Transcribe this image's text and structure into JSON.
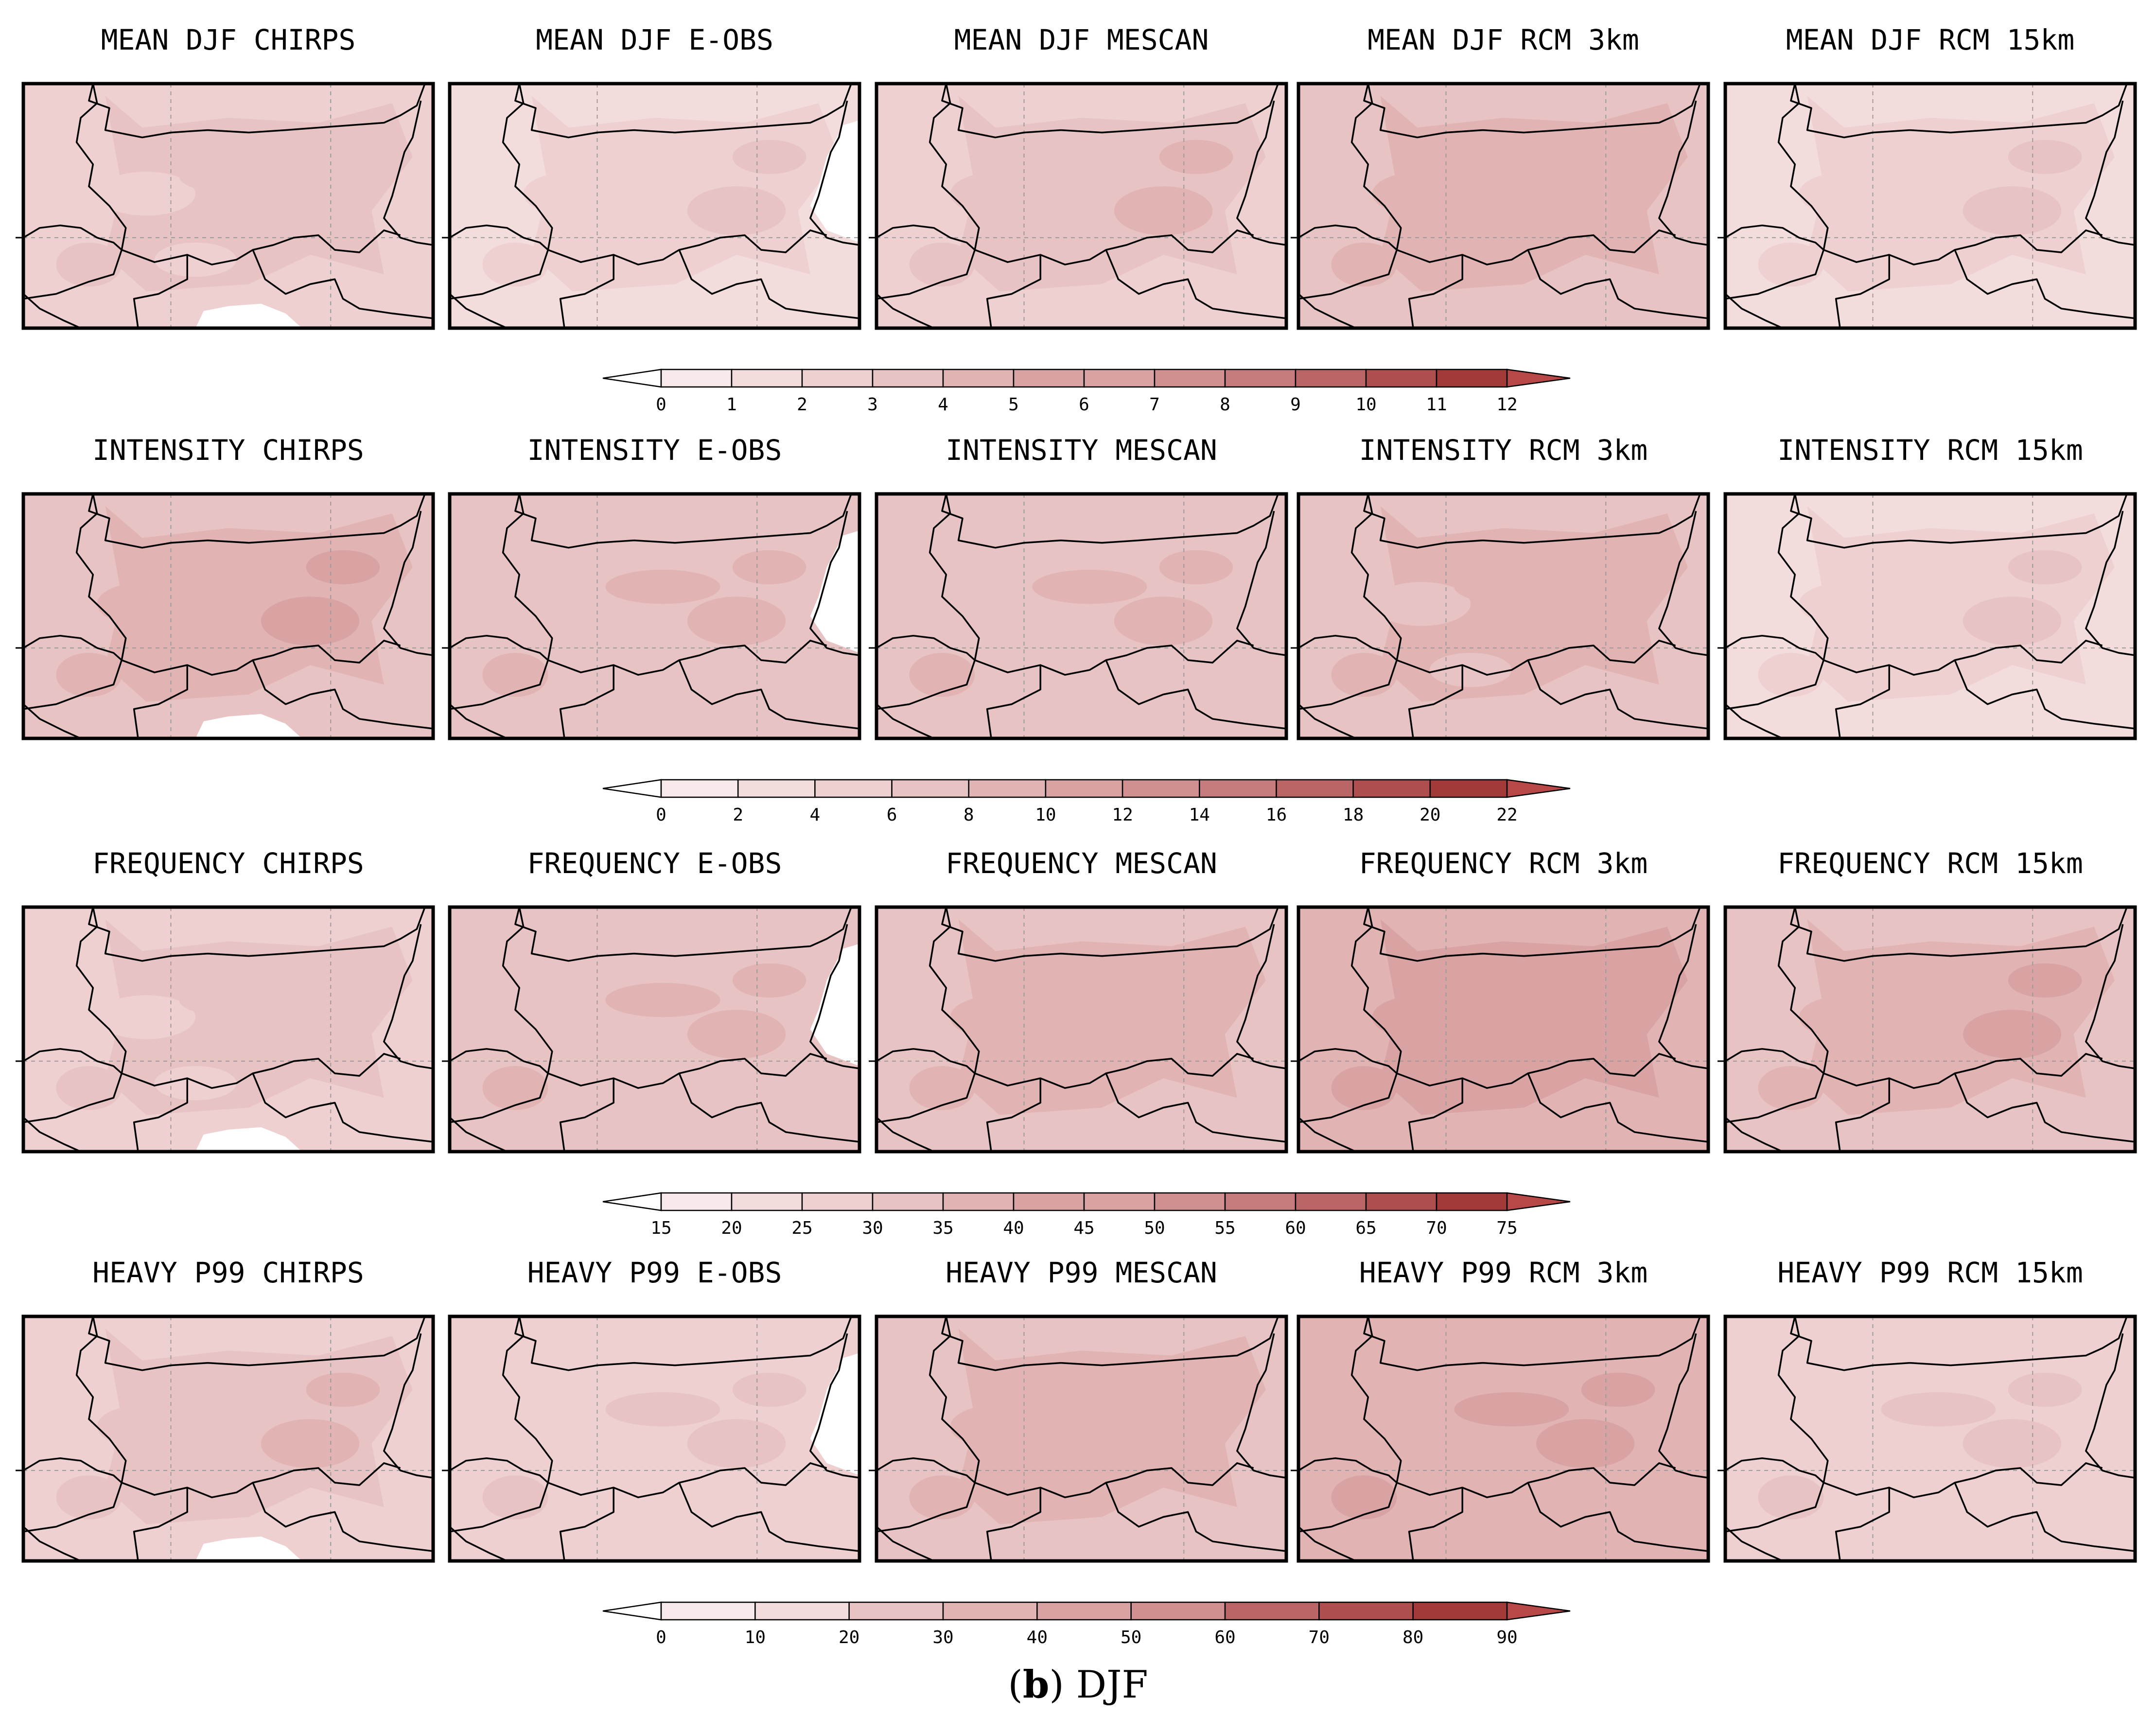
{
  "caption": {
    "label": "b",
    "text": "DJF"
  },
  "colors": {
    "ramp": [
      "#ffffff",
      "#f8eaea",
      "#f3dcdc",
      "#eed0d0",
      "#e8c3c3",
      "#e1b3b3",
      "#d9a3a3",
      "#d09090",
      "#c67c7c",
      "#bb6666",
      "#ae4e4e",
      "#a33a3a",
      "#b84848"
    ],
    "outline": "#000000",
    "gridline": "#9a9a9a"
  },
  "rows": [
    {
      "id": "mean",
      "panels": [
        {
          "title": "MEAN DJF CHIRPS",
          "base": 0.26,
          "white": "sw"
        },
        {
          "title": "MEAN DJF E-OBS",
          "base": 0.22,
          "white": "se"
        },
        {
          "title": "MEAN DJF MESCAN",
          "base": 0.28
        },
        {
          "title": "MEAN DJF RCM 3km",
          "base": 0.36
        },
        {
          "title": "MEAN DJF RCM 15km",
          "base": 0.22
        }
      ],
      "colorbar": {
        "ticks": [
          "0",
          "1",
          "2",
          "3",
          "4",
          "5",
          "6",
          "7",
          "8",
          "9",
          "10",
          "11",
          "12"
        ]
      }
    },
    {
      "id": "intensity",
      "panels": [
        {
          "title": "INTENSITY CHIRPS",
          "base": 0.4,
          "white": "sw"
        },
        {
          "title": "INTENSITY E-OBS",
          "base": 0.32,
          "white": "se"
        },
        {
          "title": "INTENSITY MESCAN",
          "base": 0.34
        },
        {
          "title": "INTENSITY RCM 3km",
          "base": 0.35
        },
        {
          "title": "INTENSITY RCM 15km",
          "base": 0.22
        }
      ],
      "colorbar": {
        "ticks": [
          "0",
          "2",
          "4",
          "6",
          "8",
          "10",
          "12",
          "14",
          "16",
          "18",
          "20",
          "22"
        ]
      }
    },
    {
      "id": "frequency",
      "panels": [
        {
          "title": "FREQUENCY CHIRPS",
          "base": 0.26,
          "white": "sw"
        },
        {
          "title": "FREQUENCY E-OBS",
          "base": 0.32,
          "white": "se"
        },
        {
          "title": "FREQUENCY MESCAN",
          "base": 0.36
        },
        {
          "title": "FREQUENCY RCM 3km",
          "base": 0.46
        },
        {
          "title": "FREQUENCY RCM 15km",
          "base": 0.4
        }
      ],
      "colorbar": {
        "ticks": [
          "15",
          "20",
          "25",
          "30",
          "35",
          "40",
          "45",
          "50",
          "55",
          "60",
          "65",
          "70",
          "75"
        ]
      }
    },
    {
      "id": "heavy",
      "panels": [
        {
          "title": "HEAVY P99 CHIRPS",
          "base": 0.3,
          "white": "sw"
        },
        {
          "title": "HEAVY P99 E-OBS",
          "base": 0.24,
          "white": "se"
        },
        {
          "title": "HEAVY P99 MESCAN",
          "base": 0.36
        },
        {
          "title": "HEAVY P99 RCM 3km",
          "base": 0.42
        },
        {
          "title": "HEAVY P99 RCM 15km",
          "base": 0.24
        }
      ],
      "colorbar": {
        "ticks": [
          "0",
          "10",
          "20",
          "30",
          "40",
          "50",
          "60",
          "70",
          "80",
          "90"
        ]
      }
    }
  ]
}
